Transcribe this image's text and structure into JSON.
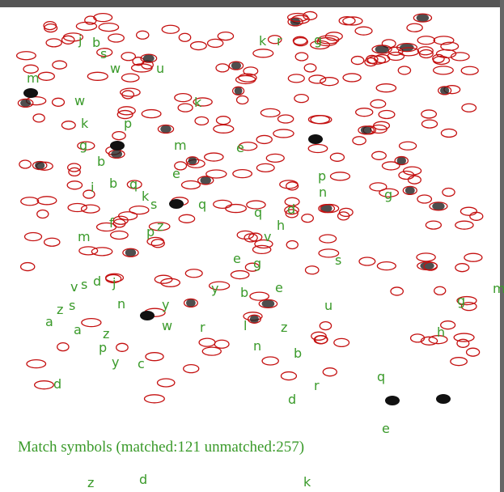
{
  "caption": "Match symbols (matched:121 unmatched:257)",
  "spot_labels": [
    "j",
    "b",
    "s",
    "k",
    "r",
    "g",
    "m",
    "w",
    "u",
    "w",
    "k",
    "k",
    "p",
    "g",
    "m",
    "e",
    "b",
    "e",
    "p",
    "i",
    "b",
    "q",
    "k",
    "s",
    "q",
    "n",
    "g",
    "q",
    "d",
    "h",
    "v",
    "p",
    "z",
    "m",
    "f",
    "s",
    "g",
    "e",
    "y",
    "b",
    "e",
    "m",
    "g",
    "u",
    "v",
    "s",
    "d",
    "j",
    "n",
    "a",
    "z",
    "s",
    "a",
    "y",
    "w",
    "r",
    "l",
    "z",
    "h",
    "z",
    "p",
    "y",
    "c",
    "n",
    "b",
    "d",
    "r",
    "q",
    "d",
    "e",
    "z",
    "d",
    "k"
  ]
}
